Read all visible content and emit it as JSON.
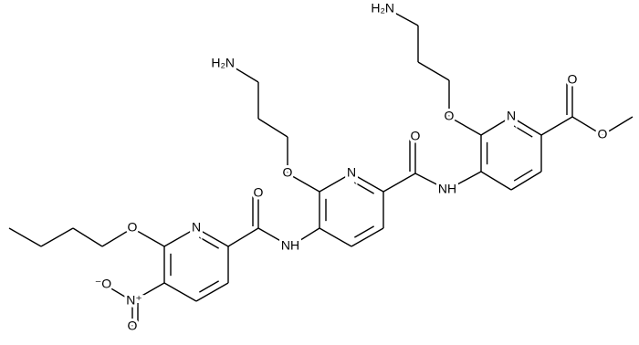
{
  "atoms": [
    "H₂N",
    "O",
    "N",
    "O",
    "O",
    "NH",
    "O",
    "N",
    "H₂N",
    "O",
    "NH",
    "O",
    "N",
    "O",
    "N⁺",
    "⁻O",
    "O"
  ]
}
